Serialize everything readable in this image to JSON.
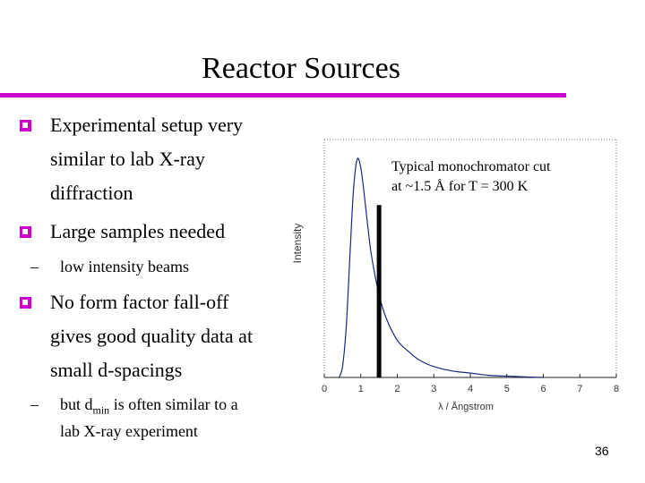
{
  "slide": {
    "title": "Reactor Sources",
    "page_number": "36",
    "accent_color": "#cc00cc"
  },
  "bullets": [
    {
      "lines": [
        "Experimental setup very",
        "similar to lab X-ray",
        "diffraction"
      ]
    },
    {
      "lines": [
        "Large samples needed"
      ],
      "sub": [
        "low intensity beams"
      ]
    },
    {
      "lines": [
        "No form factor fall-off",
        "gives good quality data at",
        "small d-spacings"
      ],
      "sub_parts": {
        "dash": "–",
        "before": "but d",
        "subscript": "min",
        "after": " is often similar to a",
        "line2": "lab X-ray experiment"
      }
    }
  ],
  "chart_data": {
    "type": "line",
    "xlabel": "λ / Ångstrom",
    "ylabel": "Intensity",
    "x_ticks": [
      "0",
      "1",
      "2",
      "3",
      "4",
      "5",
      "6",
      "7",
      "8"
    ],
    "xlim": [
      0,
      8
    ],
    "ylim": [
      0,
      1
    ],
    "grid": false,
    "annotation": [
      "Typical monochromator cut",
      "at ~1.5 Å for T = 300 K"
    ],
    "monochromator_cut": {
      "x": 1.5,
      "height": 0.79
    },
    "series": [
      {
        "x": [
          0.4,
          0.5,
          0.6,
          0.7,
          0.8,
          0.9,
          1.0,
          1.1,
          1.2,
          1.3,
          1.5,
          1.7,
          2.0,
          2.3,
          2.6,
          3.0,
          3.5,
          4.0,
          4.5,
          5.0,
          5.5,
          6.0
        ],
        "y": [
          0.0,
          0.05,
          0.23,
          0.55,
          0.86,
          1.0,
          0.96,
          0.83,
          0.68,
          0.55,
          0.38,
          0.27,
          0.17,
          0.12,
          0.08,
          0.05,
          0.03,
          0.02,
          0.01,
          0.006,
          0.003,
          0.0
        ]
      }
    ]
  }
}
